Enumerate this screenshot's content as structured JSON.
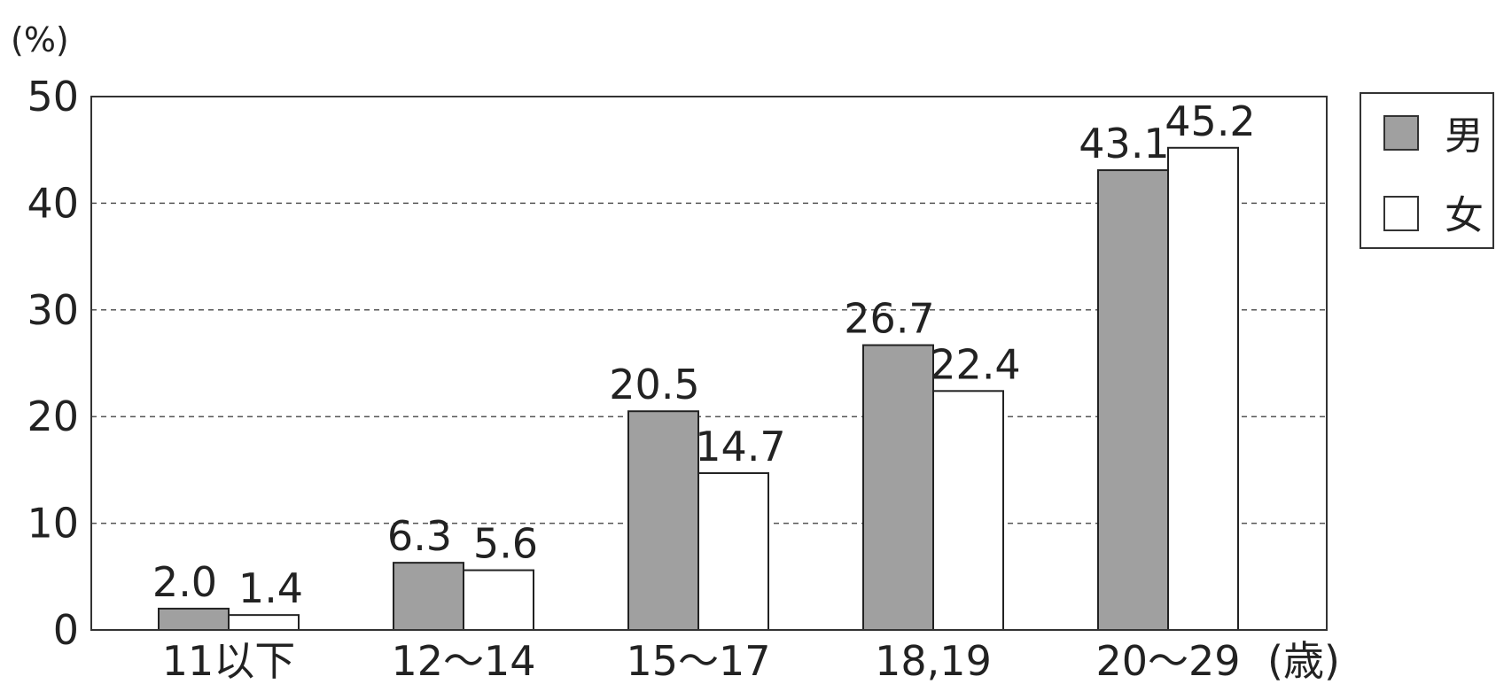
{
  "chart_data": {
    "type": "bar",
    "y_unit": "(%)",
    "x_unit": "(歳)",
    "categories": [
      "11以下",
      "12～14",
      "15～17",
      "18,19",
      "20～29"
    ],
    "series": [
      {
        "name": "男",
        "values": [
          2.0,
          6.3,
          20.5,
          26.7,
          43.1
        ],
        "color": "#a0a0a0"
      },
      {
        "name": "女",
        "values": [
          1.4,
          5.6,
          14.7,
          22.4,
          45.2
        ],
        "color": "#ffffff"
      }
    ],
    "ylim": [
      0,
      50
    ],
    "yticks": [
      0,
      10,
      20,
      30,
      40,
      50
    ],
    "grid": true,
    "legend_position": "top-right"
  }
}
